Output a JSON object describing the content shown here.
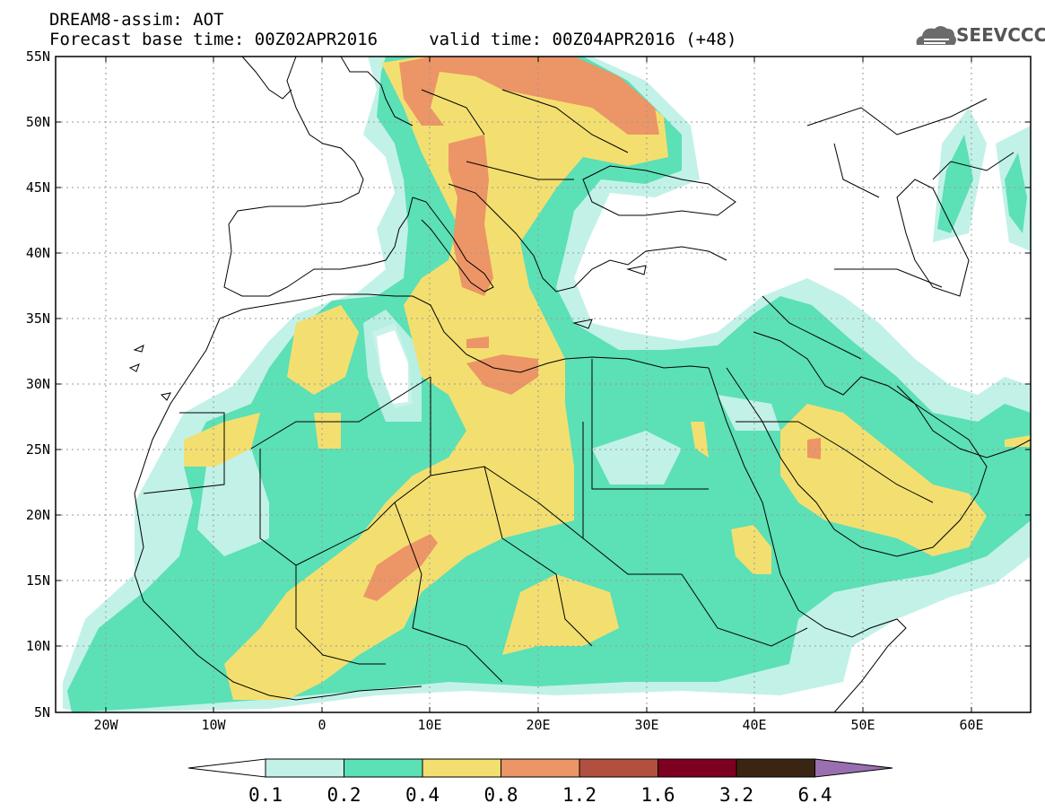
{
  "header": {
    "title": "DREAM8-assim: AOT",
    "subtitle": "Forecast base time: 00Z02APR2016     valid time: 00Z04APR2016 (+48)"
  },
  "logo": {
    "text": "SEEVCCC",
    "icon": "cloud-logo-icon"
  },
  "map": {
    "lon_range": [
      -25,
      65
    ],
    "lat_range": [
      5,
      55
    ],
    "lat_ticks": [
      "55N",
      "50N",
      "45N",
      "40N",
      "35N",
      "30N",
      "25N",
      "20N",
      "15N",
      "10N",
      "5N"
    ],
    "lon_ticks": [
      "20W",
      "10W",
      "0",
      "10E",
      "20E",
      "30E",
      "40E",
      "50E",
      "60E"
    ],
    "grid": true
  },
  "colorbar": {
    "labels": [
      "0.1",
      "0.2",
      "0.4",
      "0.8",
      "1.2",
      "1.6",
      "3.2",
      "6.4"
    ],
    "colors": [
      "#ffffff",
      "#c2f1e8",
      "#5ce0b6",
      "#f3df70",
      "#ec9566",
      "#b2503f",
      "#7e0020",
      "#3a2512",
      "#9a6fb0"
    ]
  },
  "chart_data": {
    "type": "heatmap",
    "title": "DREAM8-assim: AOT",
    "variable": "AOT",
    "levels": [
      0.1,
      0.2,
      0.4,
      0.8,
      1.2,
      1.6,
      3.2,
      6.4
    ],
    "xlim": [
      -25,
      65
    ],
    "ylim": [
      5,
      55
    ]
  }
}
